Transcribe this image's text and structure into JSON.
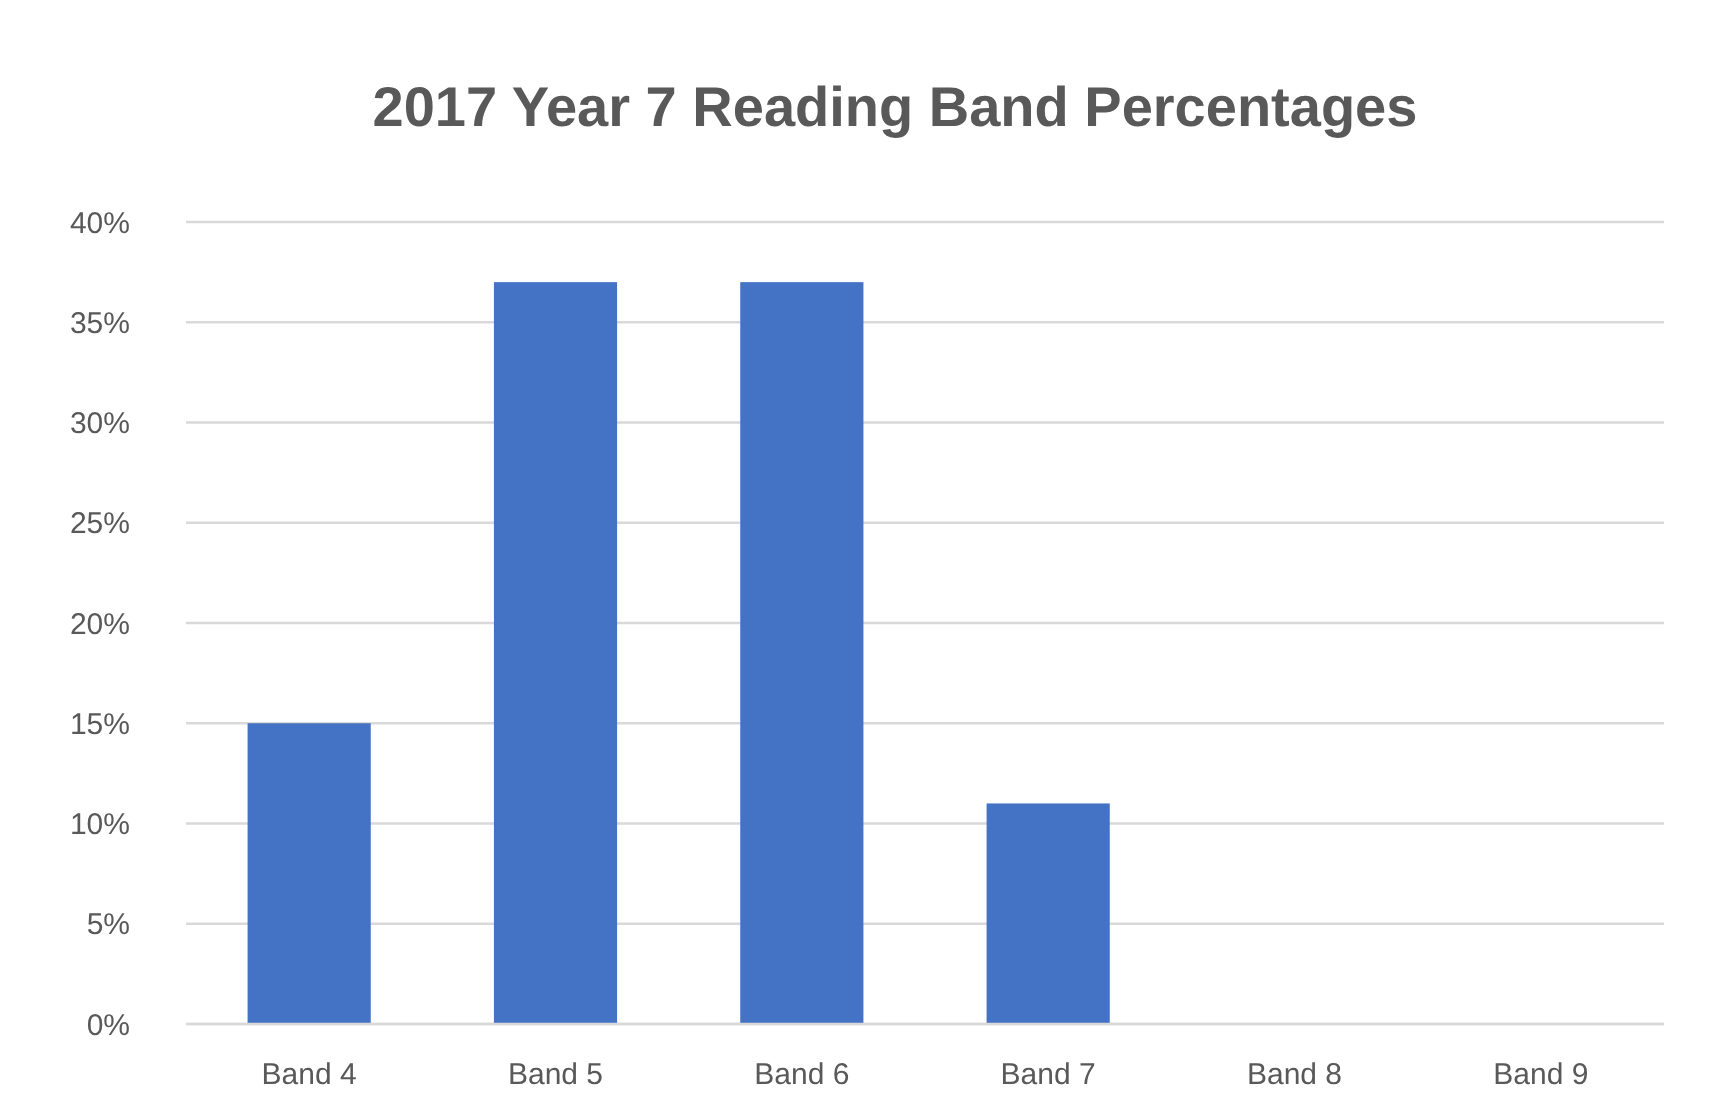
{
  "chart_data": {
    "type": "bar",
    "title": "2017  Year 7 Reading Band Percentages",
    "categories": [
      "Band 4",
      "Band 5",
      "Band 6",
      "Band 7",
      "Band 8",
      "Band 9"
    ],
    "values": [
      15,
      37,
      37,
      11,
      0,
      0
    ],
    "color": "#4472c4",
    "ylim": [
      0,
      40
    ],
    "yticks": [
      {
        "value": 0,
        "label": "0%"
      },
      {
        "value": 5,
        "label": "5%"
      },
      {
        "value": 10,
        "label": "10%"
      },
      {
        "value": 15,
        "label": "15%"
      },
      {
        "value": 20,
        "label": "20%"
      },
      {
        "value": 25,
        "label": "25%"
      },
      {
        "value": 30,
        "label": "30%"
      },
      {
        "value": 35,
        "label": "35%"
      },
      {
        "value": 40,
        "label": "40%"
      }
    ],
    "grid": "y"
  }
}
